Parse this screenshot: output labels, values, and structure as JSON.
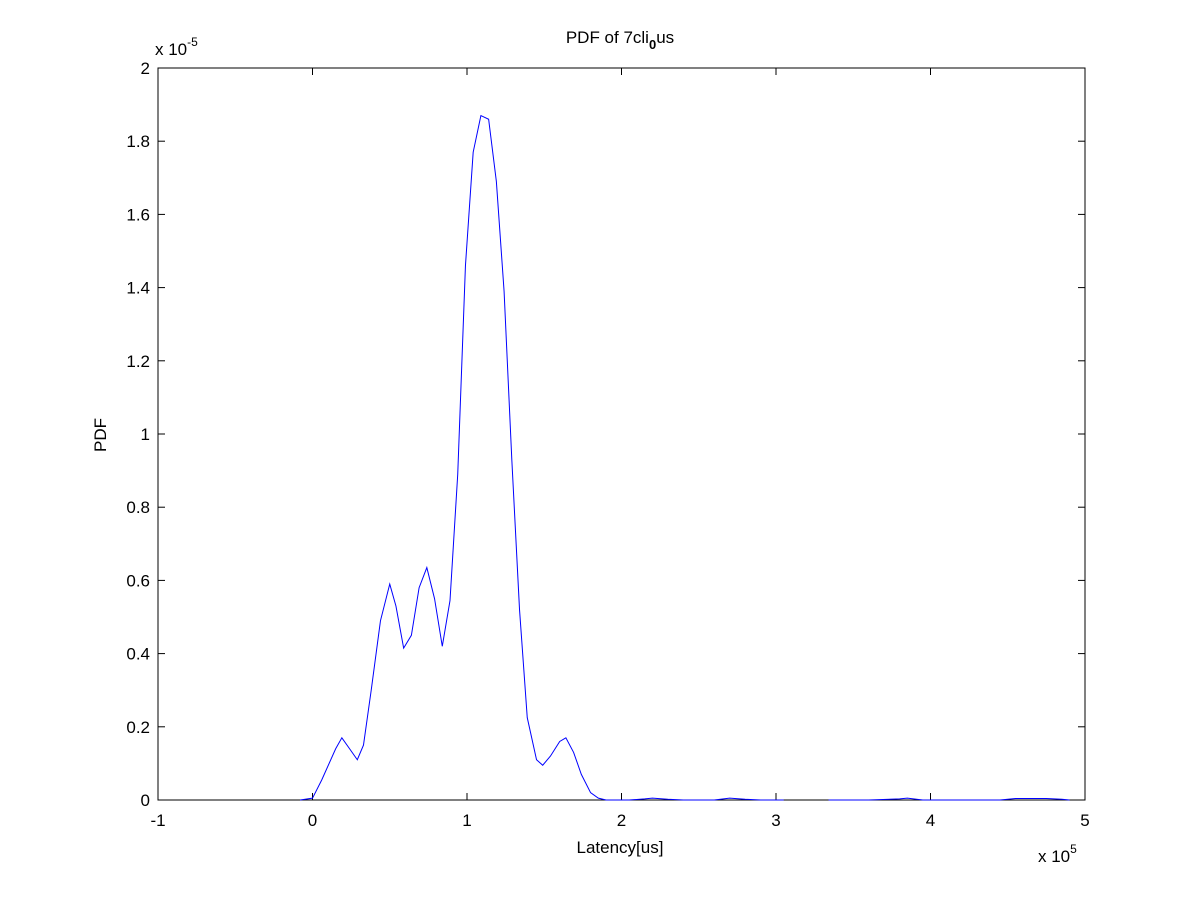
{
  "chart_data": {
    "type": "line",
    "title": {
      "main": "PDF of 7cli",
      "subscript": "0",
      "rest": "us"
    },
    "x_label": "Latency[us]",
    "y_label": "PDF",
    "x_multiplier": {
      "base": "x 10",
      "exponent": "5"
    },
    "y_multiplier": {
      "base": "x 10",
      "exponent": "-5"
    },
    "x": [
      -0.08,
      0,
      0.06,
      0.15,
      0.19,
      0.24,
      0.29,
      0.33,
      0.38,
      0.44,
      0.5,
      0.54,
      0.59,
      0.64,
      0.69,
      0.74,
      0.79,
      0.84,
      0.89,
      0.94,
      0.99,
      1.04,
      1.09,
      1.14,
      1.19,
      1.24,
      1.29,
      1.34,
      1.39,
      1.45,
      1.49,
      1.54,
      1.6,
      1.64,
      1.69,
      1.74,
      1.8,
      1.85,
      1.9,
      1.95,
      2.05,
      2.15,
      2.2,
      2.3,
      2.4,
      2.6,
      2.7,
      2.8,
      2.9,
      3.0,
      3.05,
      3.2,
      3.34,
      3.6,
      3.8,
      3.85,
      3.95,
      4.2,
      4.45,
      4.55,
      4.75,
      4.85,
      4.9
    ],
    "series": [
      {
        "name": "PDF",
        "color": "#0000ff",
        "values": [
          0,
          0.005,
          0.055,
          0.14,
          0.17,
          0.14,
          0.11,
          0.15,
          0.3,
          0.49,
          0.59,
          0.53,
          0.415,
          0.45,
          0.58,
          0.635,
          0.55,
          0.42,
          0.545,
          0.89,
          1.46,
          1.77,
          1.87,
          1.86,
          1.69,
          1.39,
          0.93,
          0.52,
          0.225,
          0.11,
          0.095,
          0.12,
          0.16,
          0.17,
          0.13,
          0.07,
          0.02,
          0.005,
          0,
          0,
          0,
          0.003,
          0.005,
          0.002,
          0,
          0,
          0.005,
          0.002,
          0,
          0,
          0,
          null,
          0,
          0,
          0.003,
          0.005,
          0,
          0,
          0,
          0.004,
          0.004,
          0.002,
          0
        ]
      }
    ],
    "xlim": [
      -1,
      5
    ],
    "xticks": [
      -1,
      0,
      1,
      2,
      3,
      4,
      5
    ],
    "ylim": [
      0,
      2
    ],
    "yticks": [
      0,
      0.2,
      0.4,
      0.6,
      0.8,
      1,
      1.2,
      1.4,
      1.6,
      1.8,
      2
    ],
    "grid": false
  }
}
